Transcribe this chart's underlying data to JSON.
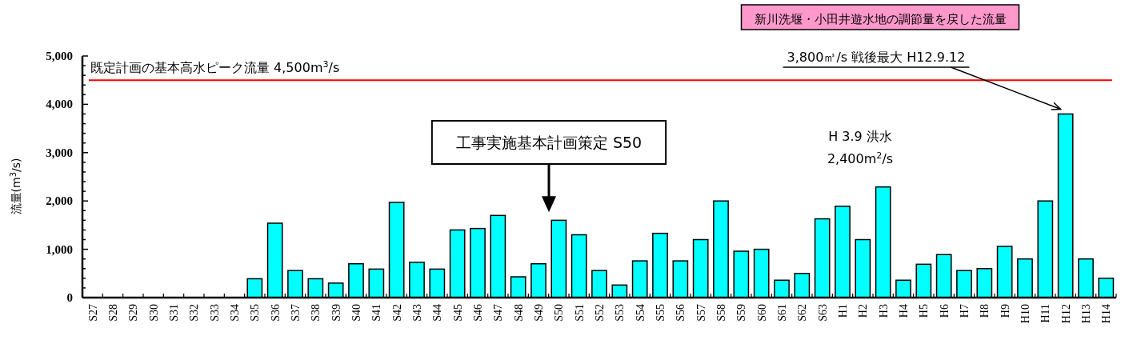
{
  "chart_data": {
    "type": "bar",
    "title": "新川洗堰・小田井遊水地の調節量を戻した流量",
    "ylabel": "流量(m$^{3}$/s)",
    "categories": [
      "S27",
      "S28",
      "S29",
      "S30",
      "S31",
      "S32",
      "S33",
      "S34",
      "S35",
      "S36",
      "S37",
      "S38",
      "S39",
      "S40",
      "S41",
      "S42",
      "S43",
      "S44",
      "S45",
      "S46",
      "S47",
      "S48",
      "S49",
      "S50",
      "S51",
      "S52",
      "S53",
      "S54",
      "S55",
      "S56",
      "S57",
      "S58",
      "S59",
      "S60",
      "S61",
      "S62",
      "S63",
      "H1",
      "H2",
      "H3",
      "H4",
      "H5",
      "H6",
      "H7",
      "H8",
      "H9",
      "H10",
      "H11",
      "H12",
      "H13",
      "H14"
    ],
    "values": [
      null,
      null,
      null,
      null,
      null,
      null,
      null,
      null,
      390,
      1540,
      560,
      390,
      300,
      700,
      590,
      1970,
      730,
      590,
      1400,
      1430,
      1700,
      430,
      700,
      1600,
      1300,
      560,
      260,
      760,
      1330,
      760,
      1200,
      2000,
      960,
      1000,
      360,
      500,
      1630,
      1890,
      1200,
      2290,
      360,
      690,
      890,
      560,
      600,
      1060,
      800,
      2000,
      3800,
      800,
      400
    ],
    "color": "#00ffff",
    "ylim": [
      0,
      5000
    ],
    "yticks": [
      {
        "value": 0,
        "label": "0"
      },
      {
        "value": 200,
        "label": null
      },
      {
        "value": 400,
        "label": null
      },
      {
        "value": 600,
        "label": null
      },
      {
        "value": 800,
        "label": null
      },
      {
        "value": 1000,
        "label": "1,000"
      },
      {
        "value": 1200,
        "label": null
      },
      {
        "value": 1400,
        "label": null
      },
      {
        "value": 1600,
        "label": null
      },
      {
        "value": 1800,
        "label": null
      },
      {
        "value": 2000,
        "label": "2,000"
      },
      {
        "value": 2200,
        "label": null
      },
      {
        "value": 2400,
        "label": null
      },
      {
        "value": 2600,
        "label": null
      },
      {
        "value": 2800,
        "label": null
      },
      {
        "value": 3000,
        "label": "3,000"
      },
      {
        "value": 3200,
        "label": null
      },
      {
        "value": 3400,
        "label": null
      },
      {
        "value": 3600,
        "label": null
      },
      {
        "value": 3800,
        "label": null
      },
      {
        "value": 4000,
        "label": "4,000"
      },
      {
        "value": 4200,
        "label": null
      },
      {
        "value": 4400,
        "label": null
      },
      {
        "value": 4600,
        "label": null
      },
      {
        "value": 4800,
        "label": null
      },
      {
        "value": 5000,
        "label": "5,000"
      }
    ],
    "ref_lines": [
      {
        "axis": "y",
        "value": 4500,
        "label": "既定計画の基本高水ピーク流量 4,500m$^{3}$/s",
        "color": "#ff0000"
      }
    ],
    "annotations": [
      "工事実施基本計画策定 S50",
      "H 3.9 洪水\n2,400m$^{2}$/s",
      {
        "text": "3,800㎥/s 戦後最大 H12.9.12",
        "x": "H12",
        "y": 3800
      }
    ],
    "grid": false
  }
}
